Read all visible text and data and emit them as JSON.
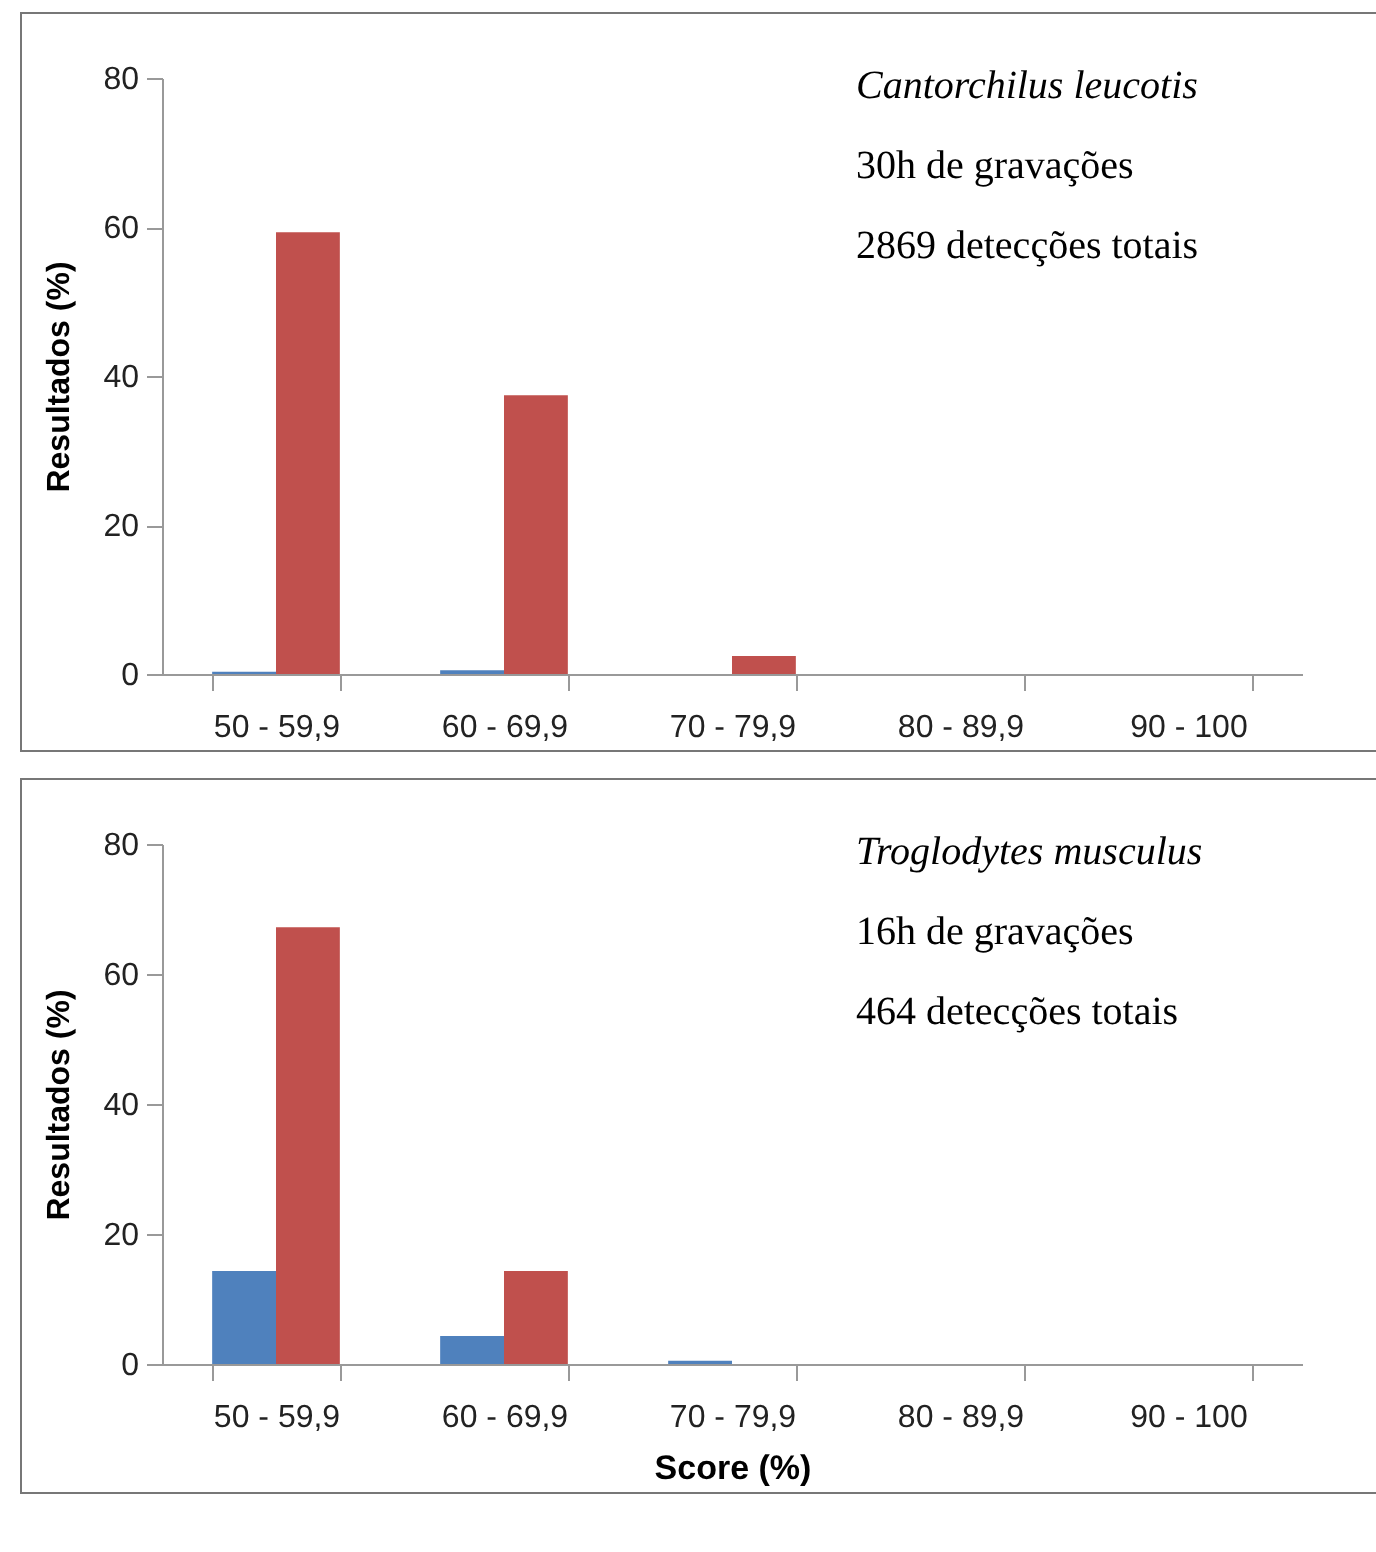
{
  "chart_data": [
    {
      "type": "bar",
      "categories": [
        "50 - 59,9",
        "60 - 69,9",
        "70 - 79,9",
        "80 - 89,9",
        "90 - 100"
      ],
      "ylabel": "Resultados (%)",
      "ylim": [
        0,
        80
      ],
      "yticks": [
        0,
        20,
        40,
        60,
        80
      ],
      "grid": false,
      "legend": false,
      "annotations": [
        "Cantorchilus leucotis",
        "30h de gravações",
        "2869 detecções totais"
      ],
      "series": [
        {
          "color": "#4f81bd",
          "values": [
            0.3,
            0.5,
            0,
            0,
            0
          ]
        },
        {
          "color": "#c0504d",
          "values": [
            59.3,
            37.4,
            2.4,
            0,
            0
          ]
        }
      ]
    },
    {
      "type": "bar",
      "categories": [
        "50 - 59,9",
        "60 - 69,9",
        "70 - 79,9",
        "80 - 89,9",
        "90 - 100"
      ],
      "xlabel": "Score (%)",
      "ylabel": "Resultados (%)",
      "ylim": [
        0,
        80
      ],
      "yticks": [
        0,
        20,
        40,
        60,
        80
      ],
      "grid": false,
      "legend": false,
      "annotations": [
        "Troglodytes musculus",
        "16h de gravações",
        "464 detecções totais"
      ],
      "series": [
        {
          "color": "#4f81bd",
          "values": [
            14.3,
            4.3,
            0.5,
            0,
            0
          ]
        },
        {
          "color": "#c0504d",
          "values": [
            67.2,
            14.3,
            0,
            0,
            0
          ]
        }
      ]
    }
  ]
}
